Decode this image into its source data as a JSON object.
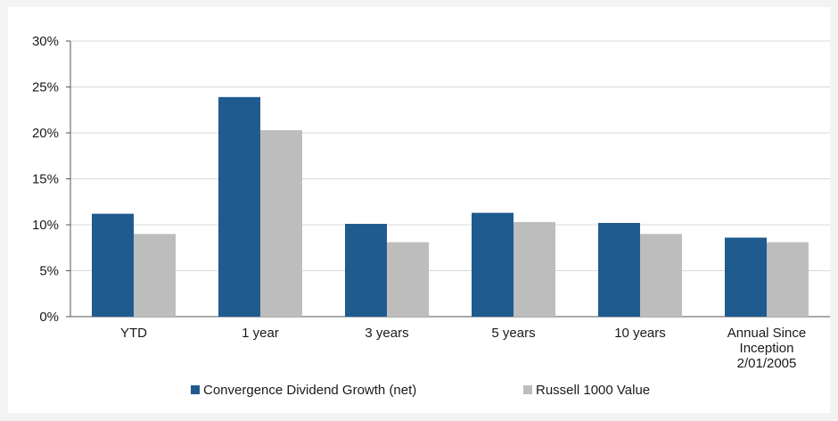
{
  "chart_data": {
    "type": "bar",
    "categories": [
      [
        "YTD"
      ],
      [
        "1 year"
      ],
      [
        "3 years"
      ],
      [
        "5 years"
      ],
      [
        "10 years"
      ],
      [
        "Annual Since",
        "Inception",
        "2/01/2005"
      ]
    ],
    "series": [
      {
        "name": "Convergence Dividend Growth (net)",
        "color": "#1f5b8f",
        "values": [
          11.2,
          23.9,
          10.1,
          11.3,
          10.2,
          8.6
        ]
      },
      {
        "name": "Russell 1000 Value",
        "color": "#bdbdbd",
        "values": [
          9.0,
          20.3,
          8.1,
          10.3,
          9.0,
          8.1
        ]
      }
    ],
    "ylim": [
      0,
      30
    ],
    "y_ticks": [
      0,
      5,
      10,
      15,
      20,
      25,
      30
    ],
    "y_tick_labels": [
      "0%",
      "5%",
      "10%",
      "15%",
      "20%",
      "25%",
      "30%"
    ],
    "grid": true,
    "legend_position": "bottom"
  }
}
